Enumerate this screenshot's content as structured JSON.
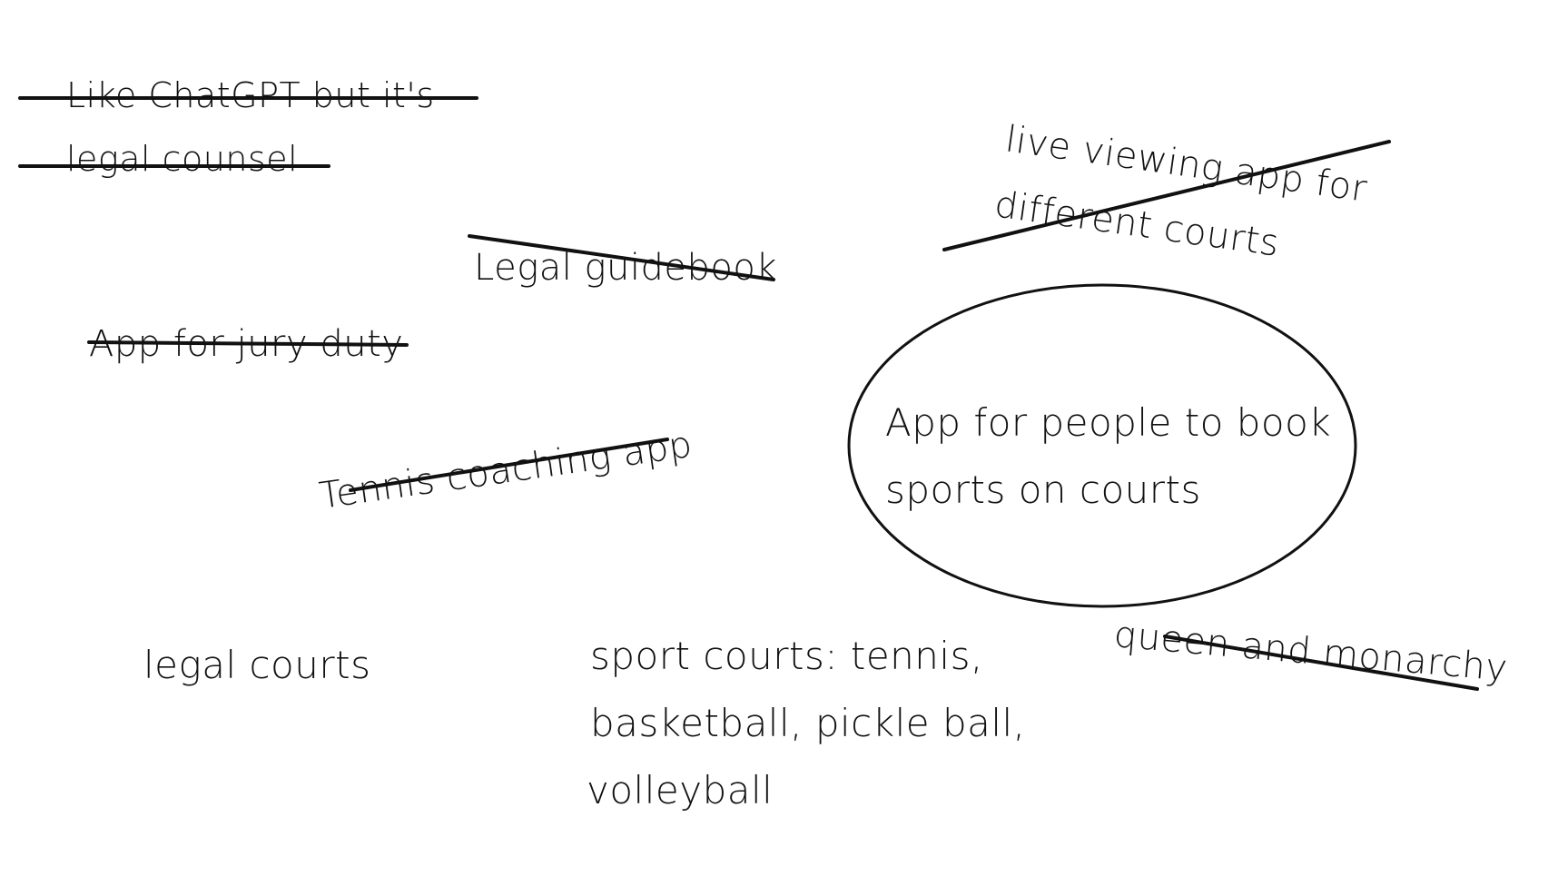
{
  "board": {
    "background": "#ffffff",
    "ink_color": "#111111"
  },
  "notes": {
    "chatgpt_line1": "Like ChatGPT but it's",
    "chatgpt_line2": "legal counsel",
    "legal_guidebook": "Legal guidebook",
    "jury_duty": "App for jury duty",
    "tennis_coaching": "Tennis coaching app",
    "live_viewing_line1": "live viewing app for",
    "live_viewing_line2": "different courts",
    "main_idea_line1": "App for people to book",
    "main_idea_line2": "sports on courts",
    "legal_courts": "legal courts",
    "sport_courts_line1": "sport courts: tennis,",
    "sport_courts_line2": "basketball, pickle ball,",
    "sport_courts_line3": "volleyball",
    "queen_monarchy": "queen and monarchy"
  },
  "status": {
    "crossed_out": [
      "chatgpt",
      "legal_guidebook",
      "jury_duty",
      "tennis_coaching",
      "live_viewing",
      "queen_monarchy"
    ],
    "circled": [
      "main_idea"
    ]
  }
}
